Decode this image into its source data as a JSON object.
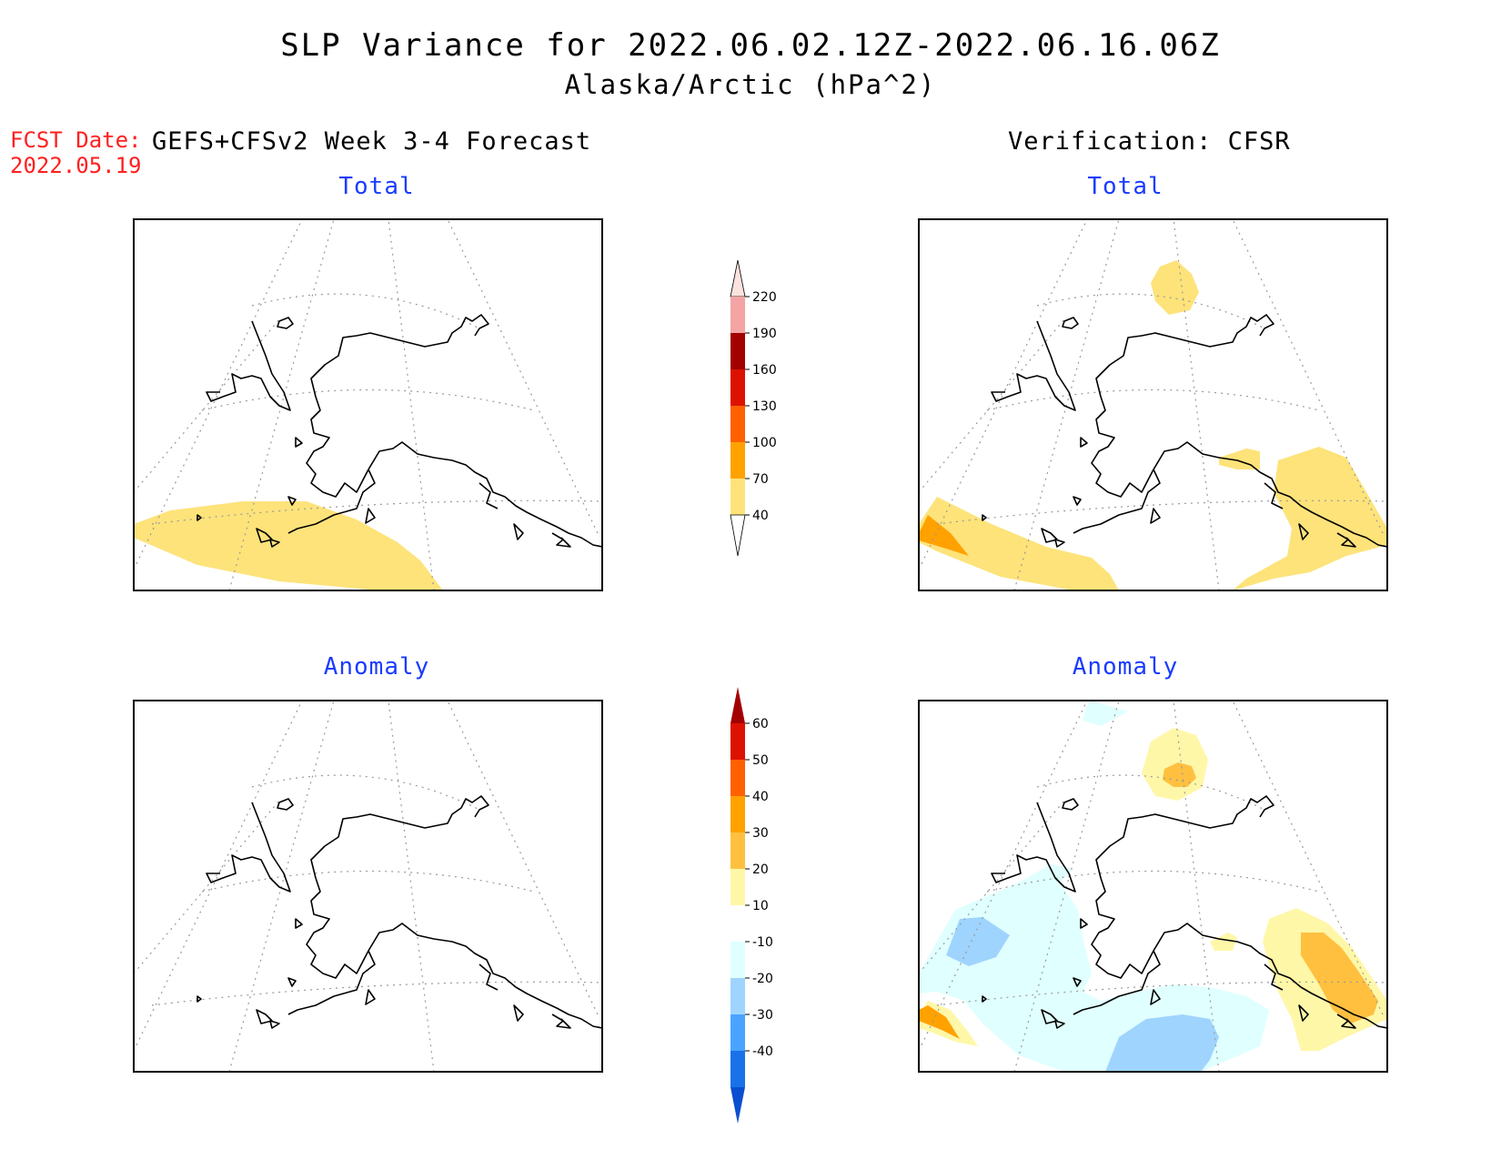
{
  "title": "SLP Variance for 2022.06.02.12Z-2022.06.16.06Z",
  "subtitle": "Alaska/Arctic (hPa^2)",
  "fcst_date": {
    "label": "FCST Date:",
    "value": "2022.05.19"
  },
  "left_header": "GEFS+CFSv2 Week 3-4 Forecast",
  "right_header": "Verification: CFSR",
  "panels": {
    "top_left": "Total",
    "top_right": "Total",
    "bottom_left": "Anomaly",
    "bottom_right": "Anomaly"
  },
  "total_colorbar": {
    "labels": [
      "220",
      "190",
      "160",
      "130",
      "100",
      "70",
      "40"
    ],
    "colors": [
      "#fde2de",
      "#f4a4a4",
      "#a30000",
      "#dd1100",
      "#ff6000",
      "#ffa200",
      "#fde37a"
    ]
  },
  "anomaly_colorbar": {
    "labels": [
      "60",
      "50",
      "40",
      "30",
      "20",
      "10",
      "-10",
      "-20",
      "-30",
      "-40"
    ],
    "colors": [
      "#a30000",
      "#dd1100",
      "#ff6000",
      "#ffa200",
      "#ffc040",
      "#fff7a8",
      "#ffffff",
      "#e0ffff",
      "#9fd4ff",
      "#4aa4ff",
      "#1a72e8",
      "#0a4fd0"
    ]
  },
  "colors": {
    "title": "#000000",
    "fcst_date": "#ff2020",
    "panel_label": "#1a3cff"
  }
}
